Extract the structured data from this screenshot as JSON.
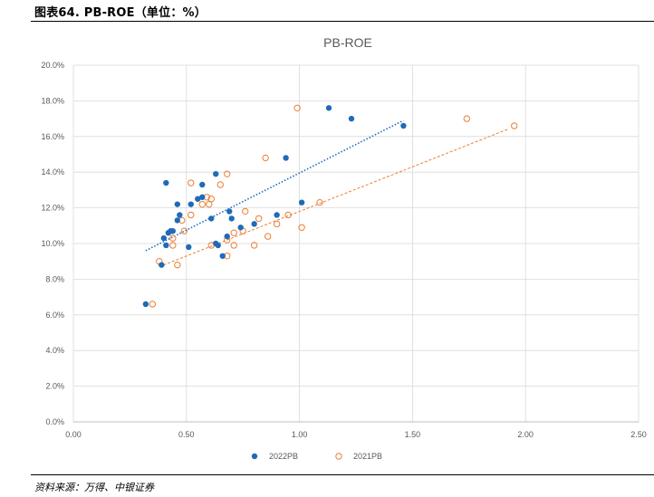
{
  "figure": {
    "label": "图表64. PB-ROE（单位：%）",
    "source": "资料来源：万得、中银证券"
  },
  "colors": {
    "series_2022": "#1F6BB8",
    "series_2021": "#ED7D31",
    "grid": "#D9D9D9",
    "text": "#595959"
  },
  "chart_data": {
    "type": "scatter",
    "title": "PB-ROE",
    "xlabel": "",
    "ylabel": "",
    "xlim": [
      0,
      2.5
    ],
    "ylim": [
      0,
      0.2
    ],
    "x_ticks": [
      0,
      0.5,
      1.0,
      1.5,
      2.0,
      2.5
    ],
    "x_tick_labels": [
      "0.00",
      "0.50",
      "1.00",
      "1.50",
      "2.00",
      "2.50"
    ],
    "y_ticks": [
      0,
      0.02,
      0.04,
      0.06,
      0.08,
      0.1,
      0.12,
      0.14,
      0.16,
      0.18,
      0.2
    ],
    "y_tick_labels": [
      "0.0%",
      "2.0%",
      "4.0%",
      "6.0%",
      "8.0%",
      "10.0%",
      "12.0%",
      "14.0%",
      "16.0%",
      "18.0%",
      "20.0%"
    ],
    "grid": "vertical-and-horizontal",
    "legend_position": "bottom",
    "series": [
      {
        "name": "2022PB",
        "marker": "filled-circle",
        "points": [
          [
            0.32,
            0.066
          ],
          [
            0.39,
            0.088
          ],
          [
            0.4,
            0.103
          ],
          [
            0.41,
            0.134
          ],
          [
            0.41,
            0.099
          ],
          [
            0.42,
            0.106
          ],
          [
            0.43,
            0.107
          ],
          [
            0.44,
            0.107
          ],
          [
            0.46,
            0.113
          ],
          [
            0.46,
            0.122
          ],
          [
            0.47,
            0.116
          ],
          [
            0.51,
            0.098
          ],
          [
            0.52,
            0.122
          ],
          [
            0.55,
            0.125
          ],
          [
            0.57,
            0.126
          ],
          [
            0.57,
            0.133
          ],
          [
            0.61,
            0.114
          ],
          [
            0.63,
            0.139
          ],
          [
            0.63,
            0.1
          ],
          [
            0.64,
            0.099
          ],
          [
            0.66,
            0.093
          ],
          [
            0.68,
            0.104
          ],
          [
            0.69,
            0.118
          ],
          [
            0.7,
            0.114
          ],
          [
            0.74,
            0.109
          ],
          [
            0.8,
            0.111
          ],
          [
            0.9,
            0.116
          ],
          [
            0.94,
            0.148
          ],
          [
            1.01,
            0.123
          ],
          [
            1.13,
            0.176
          ],
          [
            1.23,
            0.17
          ],
          [
            1.46,
            0.166
          ]
        ],
        "trendline": {
          "style": "dotted",
          "x": [
            0.32,
            1.46
          ],
          "y": [
            0.096,
            0.169
          ]
        }
      },
      {
        "name": "2021PB",
        "marker": "open-circle",
        "points": [
          [
            0.35,
            0.066
          ],
          [
            0.38,
            0.09
          ],
          [
            0.44,
            0.099
          ],
          [
            0.44,
            0.103
          ],
          [
            0.46,
            0.088
          ],
          [
            0.48,
            0.113
          ],
          [
            0.49,
            0.107
          ],
          [
            0.52,
            0.116
          ],
          [
            0.52,
            0.134
          ],
          [
            0.57,
            0.122
          ],
          [
            0.59,
            0.126
          ],
          [
            0.6,
            0.122
          ],
          [
            0.61,
            0.125
          ],
          [
            0.61,
            0.099
          ],
          [
            0.65,
            0.133
          ],
          [
            0.68,
            0.139
          ],
          [
            0.68,
            0.093
          ],
          [
            0.68,
            0.102
          ],
          [
            0.71,
            0.106
          ],
          [
            0.71,
            0.099
          ],
          [
            0.75,
            0.107
          ],
          [
            0.76,
            0.118
          ],
          [
            0.8,
            0.099
          ],
          [
            0.82,
            0.114
          ],
          [
            0.85,
            0.148
          ],
          [
            0.86,
            0.104
          ],
          [
            0.9,
            0.111
          ],
          [
            0.95,
            0.116
          ],
          [
            0.99,
            0.176
          ],
          [
            1.01,
            0.109
          ],
          [
            1.09,
            0.123
          ],
          [
            1.74,
            0.17
          ],
          [
            1.95,
            0.166
          ]
        ],
        "trendline": {
          "style": "dashed",
          "x": [
            0.38,
            1.92
          ],
          "y": [
            0.087,
            0.164
          ]
        }
      }
    ]
  }
}
